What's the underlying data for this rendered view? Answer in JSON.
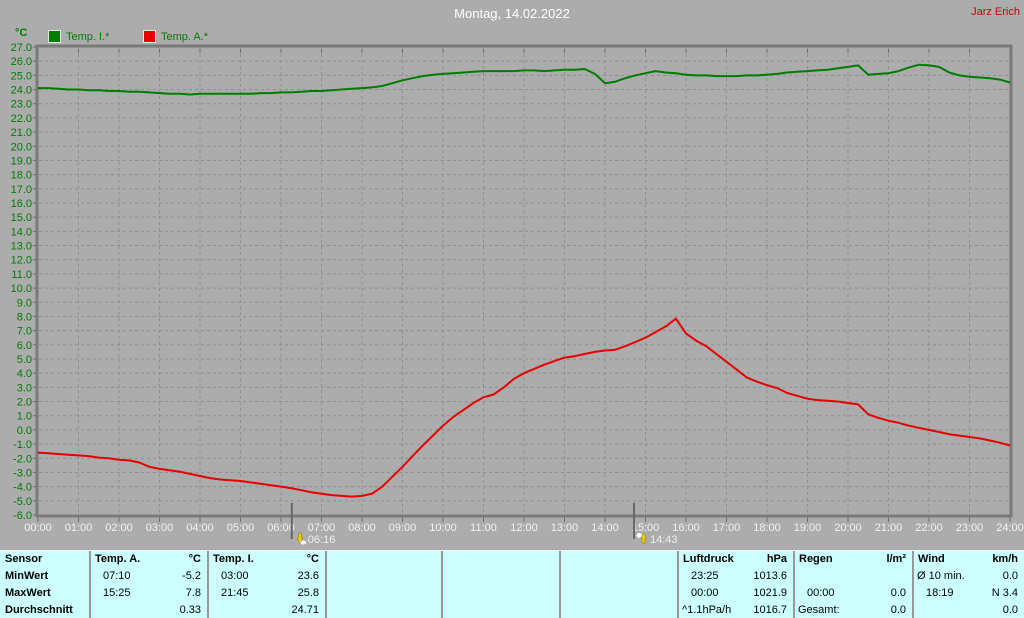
{
  "header": {
    "title": "Montag, 14.02.2022",
    "owner": "Jarz Erich"
  },
  "chart_data": {
    "type": "line",
    "title": "Montag, 14.02.2022",
    "xlabel": "",
    "ylabel": "°C",
    "ylim": [
      -6.0,
      27.0
    ],
    "ytick_step": 1.0,
    "xlim_hours": [
      0,
      24
    ],
    "xtick_labels": [
      "00:00",
      "01:00",
      "02:00",
      "03:00",
      "04:00",
      "05:00",
      "06:00",
      "07:00",
      "08:00",
      "09:00",
      "10:00",
      "11:00",
      "12:00",
      "13:00",
      "14:00",
      "15:00",
      "16:00",
      "17:00",
      "18:00",
      "19:00",
      "20:00",
      "21:00",
      "22:00",
      "23:00",
      "24:00"
    ],
    "grid": "dashed",
    "legend_position": "top-left",
    "colors": {
      "background": "#acacac",
      "plot_border": "#7a7a7a",
      "grid": "#8f8f8f",
      "tick": "#6e6e6e",
      "y_label_text": "#007d00",
      "x_label_text": "#f2f2f2",
      "temp_i_line": "#007d00",
      "temp_a_line": "#e60000",
      "title_text": "#ffffff",
      "owner_text": "#cc0000",
      "table_background": "#ccffff"
    },
    "series": [
      {
        "name": "Temp. I.*",
        "color": "#007d00",
        "points": [
          [
            0,
            24.1
          ],
          [
            0.25,
            24.1
          ],
          [
            0.5,
            24.05
          ],
          [
            0.75,
            24.0
          ],
          [
            1,
            24.0
          ],
          [
            1.25,
            23.95
          ],
          [
            1.5,
            23.95
          ],
          [
            1.75,
            23.9
          ],
          [
            2,
            23.9
          ],
          [
            2.25,
            23.85
          ],
          [
            2.5,
            23.85
          ],
          [
            2.75,
            23.8
          ],
          [
            3,
            23.75
          ],
          [
            3.25,
            23.7
          ],
          [
            3.5,
            23.7
          ],
          [
            3.75,
            23.65
          ],
          [
            4,
            23.7
          ],
          [
            4.25,
            23.7
          ],
          [
            4.5,
            23.7
          ],
          [
            4.75,
            23.7
          ],
          [
            5,
            23.7
          ],
          [
            5.25,
            23.7
          ],
          [
            5.5,
            23.75
          ],
          [
            5.75,
            23.75
          ],
          [
            6,
            23.8
          ],
          [
            6.25,
            23.8
          ],
          [
            6.5,
            23.85
          ],
          [
            6.75,
            23.9
          ],
          [
            7,
            23.9
          ],
          [
            7.25,
            23.95
          ],
          [
            7.5,
            24.0
          ],
          [
            7.75,
            24.05
          ],
          [
            8,
            24.1
          ],
          [
            8.25,
            24.15
          ],
          [
            8.5,
            24.25
          ],
          [
            8.75,
            24.45
          ],
          [
            9,
            24.65
          ],
          [
            9.25,
            24.8
          ],
          [
            9.5,
            24.95
          ],
          [
            9.75,
            25.05
          ],
          [
            10,
            25.1
          ],
          [
            10.25,
            25.15
          ],
          [
            10.5,
            25.2
          ],
          [
            10.75,
            25.25
          ],
          [
            11,
            25.3
          ],
          [
            11.25,
            25.3
          ],
          [
            11.5,
            25.3
          ],
          [
            11.75,
            25.3
          ],
          [
            12,
            25.35
          ],
          [
            12.25,
            25.35
          ],
          [
            12.5,
            25.3
          ],
          [
            12.75,
            25.35
          ],
          [
            13,
            25.4
          ],
          [
            13.25,
            25.4
          ],
          [
            13.5,
            25.45
          ],
          [
            13.75,
            25.1
          ],
          [
            14,
            24.45
          ],
          [
            14.25,
            24.55
          ],
          [
            14.5,
            24.8
          ],
          [
            14.75,
            25.0
          ],
          [
            15,
            25.15
          ],
          [
            15.25,
            25.3
          ],
          [
            15.5,
            25.2
          ],
          [
            15.75,
            25.15
          ],
          [
            16,
            25.05
          ],
          [
            16.25,
            25.0
          ],
          [
            16.5,
            25.0
          ],
          [
            16.75,
            24.95
          ],
          [
            17,
            24.95
          ],
          [
            17.25,
            24.95
          ],
          [
            17.5,
            25.0
          ],
          [
            17.75,
            25.0
          ],
          [
            18,
            25.05
          ],
          [
            18.25,
            25.1
          ],
          [
            18.5,
            25.2
          ],
          [
            18.75,
            25.25
          ],
          [
            19,
            25.3
          ],
          [
            19.25,
            25.35
          ],
          [
            19.5,
            25.4
          ],
          [
            19.75,
            25.5
          ],
          [
            20,
            25.6
          ],
          [
            20.25,
            25.7
          ],
          [
            20.5,
            25.05
          ],
          [
            20.75,
            25.1
          ],
          [
            21,
            25.15
          ],
          [
            21.25,
            25.3
          ],
          [
            21.5,
            25.55
          ],
          [
            21.75,
            25.75
          ],
          [
            22,
            25.7
          ],
          [
            22.25,
            25.6
          ],
          [
            22.5,
            25.2
          ],
          [
            22.75,
            25.0
          ],
          [
            23,
            24.9
          ],
          [
            23.25,
            24.85
          ],
          [
            23.5,
            24.8
          ],
          [
            23.75,
            24.7
          ],
          [
            24,
            24.5
          ]
        ]
      },
      {
        "name": "Temp. A.*",
        "color": "#e60000",
        "points": [
          [
            0,
            -1.6
          ],
          [
            0.25,
            -1.65
          ],
          [
            0.5,
            -1.7
          ],
          [
            0.75,
            -1.75
          ],
          [
            1,
            -1.8
          ],
          [
            1.25,
            -1.85
          ],
          [
            1.5,
            -1.95
          ],
          [
            1.75,
            -2.0
          ],
          [
            2,
            -2.1
          ],
          [
            2.25,
            -2.15
          ],
          [
            2.5,
            -2.3
          ],
          [
            2.75,
            -2.6
          ],
          [
            3,
            -2.75
          ],
          [
            3.25,
            -2.85
          ],
          [
            3.5,
            -2.95
          ],
          [
            3.75,
            -3.1
          ],
          [
            4,
            -3.25
          ],
          [
            4.25,
            -3.4
          ],
          [
            4.5,
            -3.5
          ],
          [
            4.75,
            -3.55
          ],
          [
            5,
            -3.6
          ],
          [
            5.25,
            -3.7
          ],
          [
            5.5,
            -3.8
          ],
          [
            5.75,
            -3.9
          ],
          [
            6,
            -4.0
          ],
          [
            6.25,
            -4.1
          ],
          [
            6.5,
            -4.25
          ],
          [
            6.75,
            -4.4
          ],
          [
            7,
            -4.5
          ],
          [
            7.25,
            -4.6
          ],
          [
            7.5,
            -4.65
          ],
          [
            7.75,
            -4.7
          ],
          [
            8,
            -4.65
          ],
          [
            8.25,
            -4.5
          ],
          [
            8.5,
            -4.0
          ],
          [
            8.75,
            -3.3
          ],
          [
            9,
            -2.6
          ],
          [
            9.25,
            -1.85
          ],
          [
            9.5,
            -1.1
          ],
          [
            9.75,
            -0.4
          ],
          [
            10,
            0.3
          ],
          [
            10.25,
            0.9
          ],
          [
            10.5,
            1.4
          ],
          [
            10.75,
            1.9
          ],
          [
            11,
            2.3
          ],
          [
            11.25,
            2.5
          ],
          [
            11.5,
            3.0
          ],
          [
            11.75,
            3.6
          ],
          [
            12,
            4.0
          ],
          [
            12.25,
            4.3
          ],
          [
            12.5,
            4.6
          ],
          [
            12.75,
            4.85
          ],
          [
            13,
            5.1
          ],
          [
            13.25,
            5.2
          ],
          [
            13.5,
            5.35
          ],
          [
            13.75,
            5.5
          ],
          [
            14,
            5.6
          ],
          [
            14.25,
            5.65
          ],
          [
            14.5,
            5.9
          ],
          [
            14.75,
            6.2
          ],
          [
            15,
            6.5
          ],
          [
            15.25,
            6.9
          ],
          [
            15.5,
            7.3
          ],
          [
            15.75,
            7.85
          ],
          [
            16,
            6.8
          ],
          [
            16.25,
            6.3
          ],
          [
            16.5,
            5.9
          ],
          [
            16.75,
            5.35
          ],
          [
            17,
            4.8
          ],
          [
            17.25,
            4.25
          ],
          [
            17.5,
            3.7
          ],
          [
            17.75,
            3.4
          ],
          [
            18,
            3.15
          ],
          [
            18.25,
            2.95
          ],
          [
            18.5,
            2.6
          ],
          [
            18.75,
            2.4
          ],
          [
            19,
            2.2
          ],
          [
            19.25,
            2.1
          ],
          [
            19.5,
            2.05
          ],
          [
            19.75,
            2.0
          ],
          [
            20,
            1.9
          ],
          [
            20.25,
            1.8
          ],
          [
            20.5,
            1.1
          ],
          [
            20.75,
            0.85
          ],
          [
            21,
            0.65
          ],
          [
            21.25,
            0.5
          ],
          [
            21.5,
            0.3
          ],
          [
            21.75,
            0.15
          ],
          [
            22,
            0.0
          ],
          [
            22.25,
            -0.15
          ],
          [
            22.5,
            -0.3
          ],
          [
            22.75,
            -0.4
          ],
          [
            23,
            -0.5
          ],
          [
            23.25,
            -0.6
          ],
          [
            23.5,
            -0.75
          ],
          [
            23.75,
            -0.9
          ],
          [
            24,
            -1.1
          ]
        ]
      }
    ],
    "markers": [
      {
        "label": "06:16",
        "hour": 6.2667,
        "icon": "sunrise-marker-icon"
      },
      {
        "label": "14:43",
        "hour": 14.7167,
        "icon": "sunset-marker-icon"
      }
    ]
  },
  "table": {
    "row_labels": [
      "Sensor",
      "MinWert",
      "MaxWert",
      "Durchschnitt"
    ],
    "columns": [
      {
        "name": "Temp. A.",
        "unit": "°C",
        "rows": [
          [
            "07:10",
            "-5.2"
          ],
          [
            "15:25",
            "7.8"
          ],
          [
            "",
            "0.33"
          ]
        ]
      },
      {
        "name": "Temp. I.",
        "unit": "°C",
        "rows": [
          [
            "03:00",
            "23.6"
          ],
          [
            "21:45",
            "25.8"
          ],
          [
            "",
            "24.71"
          ]
        ]
      },
      {
        "name": "",
        "unit": "",
        "rows": [
          [
            "",
            ""
          ],
          [
            "",
            ""
          ],
          [
            "",
            ""
          ]
        ]
      },
      {
        "name": "",
        "unit": "",
        "rows": [
          [
            "",
            ""
          ],
          [
            "",
            ""
          ],
          [
            "",
            ""
          ]
        ]
      },
      {
        "name": "",
        "unit": "",
        "rows": [
          [
            "",
            ""
          ],
          [
            "",
            ""
          ],
          [
            "",
            ""
          ]
        ]
      },
      {
        "name": "Luftdruck",
        "unit": "hPa",
        "rows": [
          [
            "23:25",
            "1013.6"
          ],
          [
            "00:00",
            "1021.9"
          ],
          [
            "^1.1hPa/h",
            "1016.7"
          ]
        ]
      },
      {
        "name": "Regen",
        "unit": "l/m²",
        "rows": [
          [
            "",
            ""
          ],
          [
            "00:00",
            "0.0"
          ],
          [
            "Gesamt:",
            "0.0"
          ]
        ]
      },
      {
        "name": "Wind",
        "unit": "km/h",
        "rows": [
          [
            "Ø 10 min.",
            "0.0"
          ],
          [
            "18:19",
            "N 3.4"
          ],
          [
            "",
            "0.0"
          ]
        ]
      }
    ]
  }
}
